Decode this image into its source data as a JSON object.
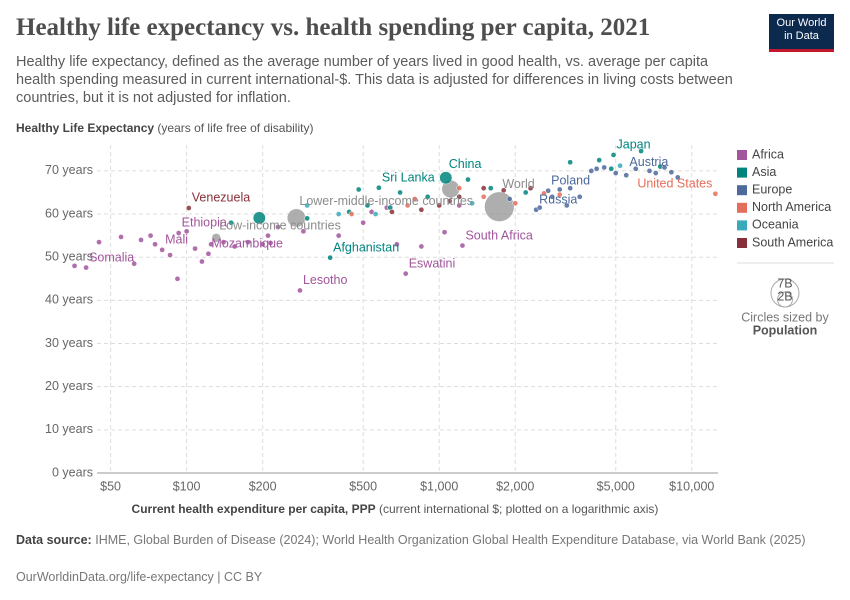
{
  "chart_data": {
    "type": "scatter",
    "title": "Healthy life expectancy vs. health spending per capita, 2021",
    "subtitle": "Healthy life expectancy, defined as the average number of years lived in good health, vs. average per capita health spending measured in current international-$. This data is adjusted for differences in living costs between countries, but it is not adjusted for inflation.",
    "logo": [
      "Our World",
      "in Data"
    ],
    "y_label": "Healthy Life Expectancy",
    "y_label_note": "(years of life free of disability)",
    "x_label": "Current health expenditure per capita, PPP",
    "x_label_note": "(current international $; plotted on a logarithmic axis)",
    "x_log": true,
    "grid": true,
    "xlim": [
      33,
      12700
    ],
    "ylim": [
      0,
      76
    ],
    "xticks": [
      {
        "value": 50,
        "label": "$50"
      },
      {
        "value": 100,
        "label": "$100"
      },
      {
        "value": 200,
        "label": "$200"
      },
      {
        "value": 500,
        "label": "$500"
      },
      {
        "value": 1000,
        "label": "$1,000"
      },
      {
        "value": 2000,
        "label": "$2,000"
      },
      {
        "value": 5000,
        "label": "$5,000"
      },
      {
        "value": 10000,
        "label": "$10,000"
      }
    ],
    "yticks": [
      {
        "value": 0,
        "label": "0 years"
      },
      {
        "value": 10,
        "label": "10 years"
      },
      {
        "value": 20,
        "label": "20 years"
      },
      {
        "value": 30,
        "label": "30 years"
      },
      {
        "value": 40,
        "label": "40 years"
      },
      {
        "value": 50,
        "label": "50 years"
      },
      {
        "value": 60,
        "label": "60 years"
      },
      {
        "value": 70,
        "label": "70 years"
      }
    ],
    "series": [
      {
        "name": "Africa",
        "color": "#a2559c",
        "x": [
          40,
          36,
          45,
          55,
          62,
          66,
          72,
          75,
          80,
          86,
          92,
          93,
          100,
          108,
          115,
          122,
          125,
          140,
          155,
          175,
          200,
          210,
          215,
          230,
          281,
          290,
          400,
          500,
          540,
          620,
          680,
          737,
          850,
          1050,
          1236,
          1200
        ],
        "y": [
          47.6,
          48,
          53.5,
          54.7,
          48.5,
          54,
          55,
          53,
          51.7,
          50.5,
          45,
          55.6,
          56,
          52,
          49,
          50.8,
          53,
          53.5,
          52.5,
          53.5,
          53,
          55,
          53.3,
          57,
          42.3,
          56,
          55,
          58,
          60.5,
          61.5,
          53,
          46.2,
          52.5,
          55.8,
          52.7,
          62
        ],
        "labels": [
          "Somalia",
          null,
          null,
          null,
          null,
          null,
          null,
          null,
          "Mali",
          null,
          null,
          "Ethiopia",
          null,
          null,
          null,
          "Mozambique",
          null,
          null,
          null,
          null,
          null,
          null,
          null,
          null,
          "Lesotho",
          null,
          null,
          null,
          null,
          null,
          null,
          "Eswatini",
          null,
          null,
          "South Africa",
          null
        ]
      },
      {
        "name": "Asia",
        "color": "#00847e",
        "x": [
          150,
          194,
          300,
          370,
          440,
          480,
          520,
          577,
          640,
          700,
          900,
          1062,
          1300,
          1600,
          2200,
          3300,
          4300,
          4800,
          4900,
          6300,
          7500
        ],
        "y": [
          58,
          59.1,
          59,
          49.9,
          60.5,
          65.7,
          62,
          66.1,
          61.5,
          65,
          64,
          68.4,
          68,
          66,
          65,
          72,
          72.5,
          70.5,
          73.7,
          74.6,
          71
        ],
        "sizes": [
          null,
          1.4,
          null,
          null,
          null,
          null,
          null,
          null,
          null,
          null,
          null,
          1.4,
          null,
          null,
          null,
          null,
          null,
          null,
          null,
          null,
          null
        ],
        "labels": [
          null,
          null,
          null,
          "Afghanistan",
          null,
          null,
          null,
          "Sri Lanka",
          null,
          null,
          null,
          "China",
          null,
          null,
          null,
          null,
          null,
          null,
          "Japan",
          null,
          null
        ]
      },
      {
        "name": "Europe",
        "color": "#4c6a9c",
        "x": [
          1900,
          2420,
          2500,
          2700,
          2800,
          3000,
          3200,
          3300,
          3600,
          4000,
          4200,
          4500,
          5000,
          5500,
          6000,
          6800,
          7200,
          7800,
          8300,
          8800
        ],
        "y": [
          63.5,
          61,
          61.5,
          65.4,
          64,
          65.7,
          62,
          66,
          64,
          70,
          70.5,
          70.8,
          69.5,
          69,
          70.5,
          70,
          69.5,
          70.8,
          69.7,
          68.5
        ],
        "labels": [
          null,
          "Russia",
          null,
          "Poland",
          null,
          null,
          null,
          null,
          null,
          null,
          null,
          null,
          null,
          null,
          null,
          null,
          null,
          null,
          "Austria",
          null
        ]
      },
      {
        "name": "North America",
        "color": "#e56e5a",
        "x": [
          450,
          750,
          800,
          1200,
          1500,
          2000,
          2600,
          3000,
          12400
        ],
        "y": [
          60,
          62,
          63.5,
          66,
          64,
          62.5,
          64.8,
          64.5,
          64.7
        ],
        "labels": [
          null,
          null,
          null,
          null,
          null,
          null,
          null,
          null,
          "United States"
        ]
      },
      {
        "name": "Oceania",
        "color": "#38aaba",
        "x": [
          300,
          400,
          560,
          1350,
          5200
        ],
        "y": [
          62,
          60,
          60,
          62.5,
          71.2
        ]
      },
      {
        "name": "South America",
        "color": "#883039",
        "x": [
          102,
          650,
          850,
          1000,
          1100,
          1200,
          1500,
          1800,
          2300
        ],
        "y": [
          61.4,
          60.5,
          61,
          62,
          63,
          64,
          66,
          65.5,
          66
        ],
        "labels": [
          "Venezuela",
          null,
          null,
          null,
          null,
          null,
          null,
          null,
          null
        ]
      }
    ],
    "aggregates": {
      "color": "#8c8c8c",
      "x": [
        131,
        272,
        1110,
        1730
      ],
      "y": [
        54.5,
        59.1,
        65.8,
        61.7
      ],
      "sizes": [
        0.7,
        3,
        2.8,
        7.9
      ],
      "labels": [
        "Low-income countries",
        "Lower-middle-income countries",
        null,
        "World"
      ]
    },
    "size_legend": {
      "ticks": [
        {
          "value": 7,
          "label": "7B"
        },
        {
          "value": 2,
          "label": "2B"
        }
      ],
      "caption": "Circles sized by",
      "title": "Population"
    },
    "source_label": "Data source:",
    "source": "IHME, Global Burden of Disease (2024); World Health Organization Global Health Expenditure Database, via World Bank (2025)",
    "footer_url": "OurWorldinData.org/life-expectancy | CC BY"
  }
}
